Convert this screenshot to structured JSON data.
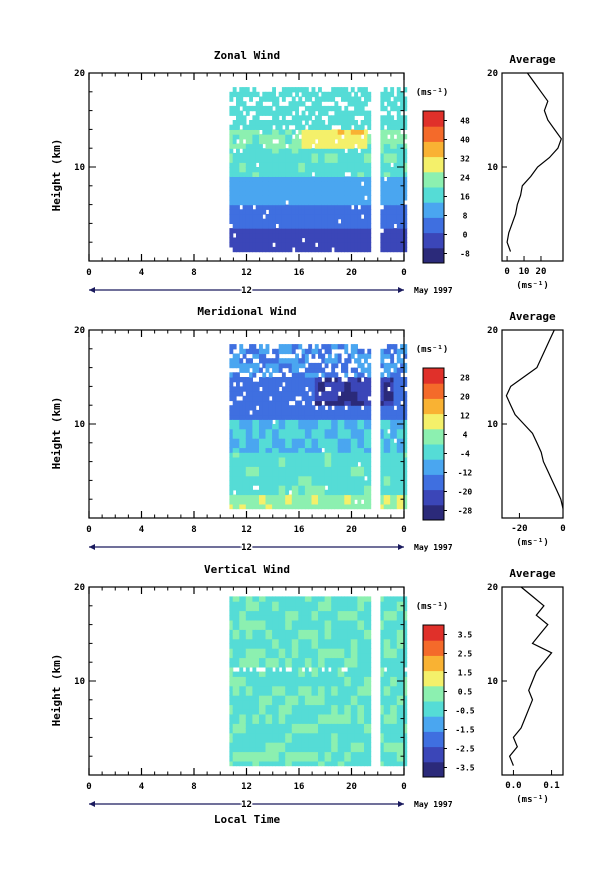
{
  "chart_data": [
    {
      "type": "heatmap",
      "title": "Zonal Wind",
      "ylabel": "Height (km)",
      "ylim": [
        0,
        20
      ],
      "xlim": [
        0,
        24
      ],
      "x_ticks": [
        "0",
        "4",
        "8",
        "12",
        "16",
        "20",
        "0"
      ],
      "y_ticks": [
        "20",
        "10"
      ],
      "date_label": "12",
      "month_label": "May 1997",
      "colorbar": {
        "unit": "(ms⁻¹)",
        "ticks": [
          "48",
          "40",
          "32",
          "24",
          "16",
          "8",
          "0",
          "-8"
        ],
        "range": [
          -12,
          52
        ]
      },
      "average": {
        "title": "Average",
        "xlabel": "(ms⁻¹)",
        "x_ticks": [
          "0",
          "10",
          "20"
        ],
        "xlim": [
          -3,
          33
        ],
        "y_ticks": [
          "20",
          "10"
        ],
        "heights": [
          1,
          2,
          3,
          4,
          5,
          6,
          7,
          8,
          9,
          10,
          11,
          12,
          13,
          14,
          15,
          16,
          17,
          18,
          19,
          20
        ],
        "values": [
          2,
          0,
          1,
          3,
          5,
          6,
          8,
          9,
          14,
          18,
          25,
          30,
          32,
          28,
          24,
          22,
          24,
          20,
          16,
          12
        ]
      }
    },
    {
      "type": "heatmap",
      "title": "Meridional Wind",
      "ylabel": "Height (km)",
      "ylim": [
        0,
        20
      ],
      "xlim": [
        0,
        24
      ],
      "x_ticks": [
        "0",
        "4",
        "8",
        "12",
        "16",
        "20",
        "0"
      ],
      "y_ticks": [
        "20",
        "10"
      ],
      "date_label": "12",
      "month_label": "May 1997",
      "colorbar": {
        "unit": "(ms⁻¹)",
        "ticks": [
          "28",
          "20",
          "12",
          "4",
          "-4",
          "-12",
          "-20",
          "-28"
        ],
        "range": [
          -32,
          32
        ]
      },
      "average": {
        "title": "Average",
        "xlabel": "(ms⁻¹)",
        "x_ticks": [
          "-20",
          "0"
        ],
        "xlim": [
          -28,
          0
        ],
        "y_ticks": [
          "20",
          "10"
        ],
        "heights": [
          1,
          2,
          3,
          4,
          5,
          6,
          7,
          8,
          9,
          10,
          11,
          12,
          13,
          14,
          15,
          16,
          17,
          18,
          19,
          20
        ],
        "values": [
          0,
          -1,
          -3,
          -5,
          -7,
          -9,
          -10,
          -12,
          -14,
          -18,
          -22,
          -24,
          -26,
          -24,
          -18,
          -12,
          -10,
          -8,
          -6,
          -4
        ]
      }
    },
    {
      "type": "heatmap",
      "title": "Vertical Wind",
      "ylabel": "Height (km)",
      "xlabel": "Local Time",
      "ylim": [
        0,
        20
      ],
      "xlim": [
        0,
        24
      ],
      "x_ticks": [
        "0",
        "4",
        "8",
        "12",
        "16",
        "20",
        "0"
      ],
      "y_ticks": [
        "20",
        "10"
      ],
      "date_label": "12",
      "month_label": "May 1997",
      "colorbar": {
        "unit": "(ms⁻¹)",
        "ticks": [
          "3.5",
          "2.5",
          "1.5",
          "0.5",
          "-0.5",
          "-1.5",
          "-2.5",
          "-3.5"
        ],
        "range": [
          -4,
          4
        ]
      },
      "average": {
        "title": "Average",
        "xlabel": "(ms⁻¹)",
        "x_ticks": [
          "0.0",
          "0.1"
        ],
        "xlim": [
          -0.03,
          0.13
        ],
        "y_ticks": [
          "20",
          "10"
        ],
        "heights": [
          1,
          2,
          3,
          4,
          5,
          6,
          7,
          8,
          9,
          10,
          11,
          12,
          13,
          14,
          15,
          16,
          17,
          18,
          19,
          20
        ],
        "values": [
          0.0,
          -0.01,
          0.01,
          0.0,
          0.02,
          0.03,
          0.04,
          0.05,
          0.04,
          0.05,
          0.06,
          0.08,
          0.1,
          0.05,
          0.07,
          0.09,
          0.06,
          0.08,
          0.05,
          0.02
        ]
      }
    }
  ],
  "colors": {
    "scale": [
      "#2b2a7a",
      "#3b46b8",
      "#3f6fe0",
      "#4aa6f0",
      "#55dcd6",
      "#8cf0b0",
      "#f4f06a",
      "#f9b233",
      "#f46a2a",
      "#e0302a"
    ],
    "missing": "#ffffff"
  }
}
